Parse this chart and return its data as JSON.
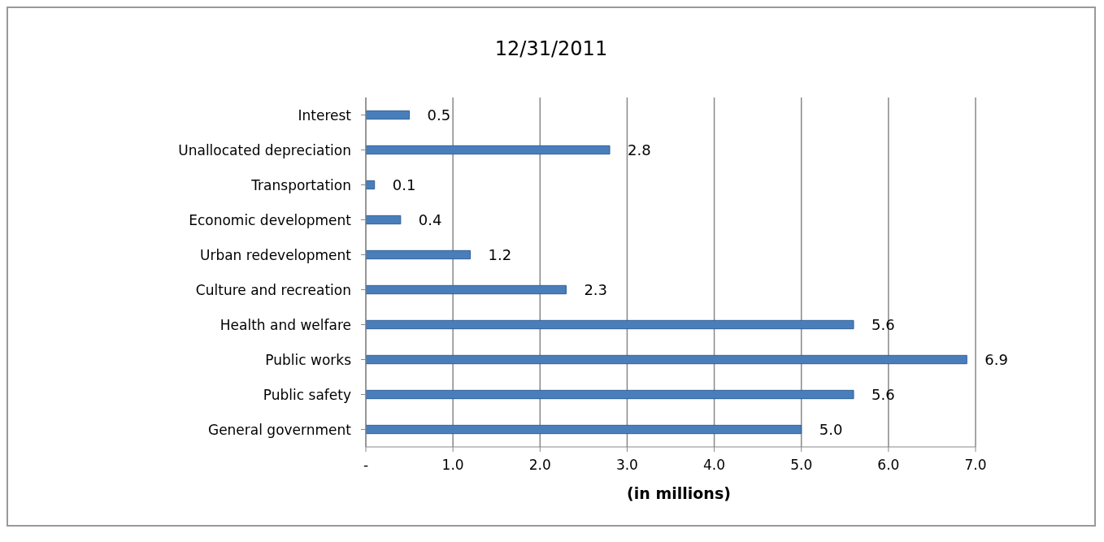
{
  "chart_data": {
    "type": "bar",
    "orientation": "horizontal",
    "title": "12/31/2011",
    "xlabel": "(in millions)",
    "categories": [
      "Interest",
      "Unallocated depreciation",
      "Transportation",
      "Economic development",
      "Urban redevelopment",
      "Culture and recreation",
      "Health and welfare",
      "Public works",
      "Public safety",
      "General government"
    ],
    "values": [
      0.5,
      2.8,
      0.1,
      0.4,
      1.2,
      2.3,
      5.6,
      6.9,
      5.6,
      5.0
    ],
    "value_labels": [
      "0.5",
      "2.8",
      "0.1",
      "0.4",
      "1.2",
      "2.3",
      "5.6",
      "6.9",
      "5.6",
      "5.0"
    ],
    "color": "#4a7ebb",
    "xlim": [
      0,
      7
    ],
    "xticks": [
      {
        "value": 0,
        "label": "-"
      },
      {
        "value": 1,
        "label": "1.0"
      },
      {
        "value": 2,
        "label": "2.0"
      },
      {
        "value": 3,
        "label": "3.0"
      },
      {
        "value": 4,
        "label": "4.0"
      },
      {
        "value": 5,
        "label": "5.0"
      },
      {
        "value": 6,
        "label": "6.0"
      },
      {
        "value": 7,
        "label": "7.0"
      }
    ],
    "grid": "x"
  }
}
